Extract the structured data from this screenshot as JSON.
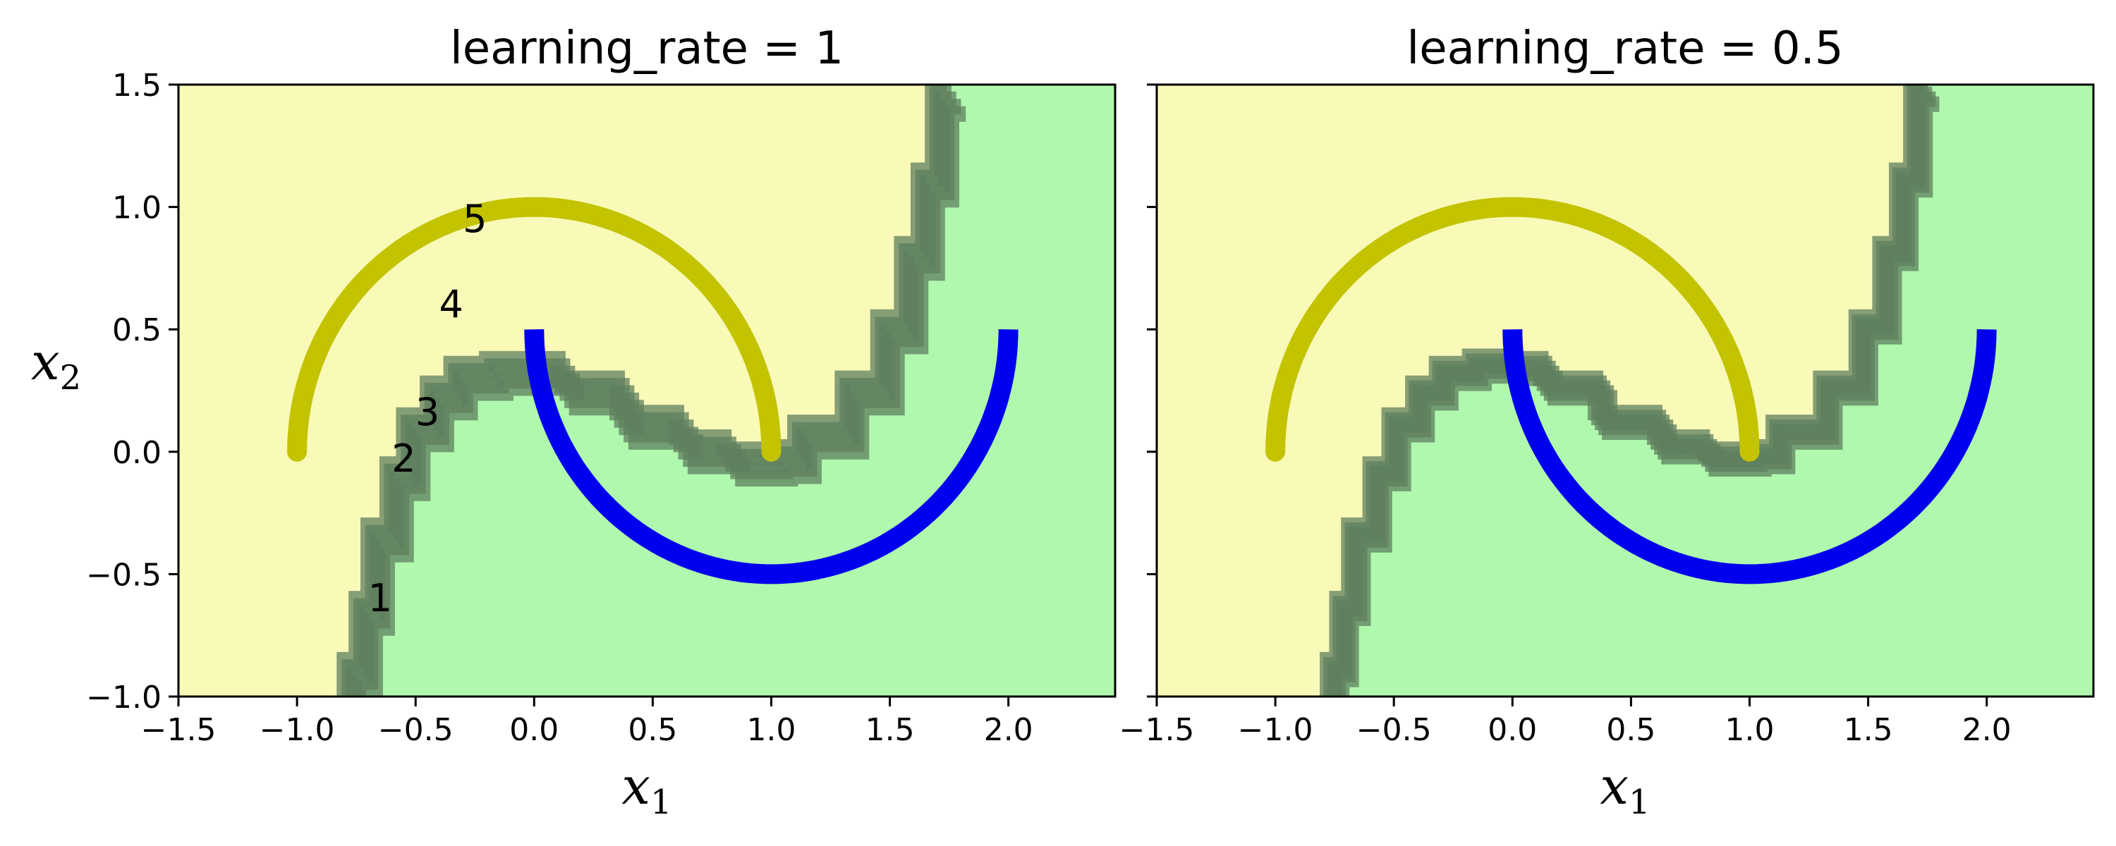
{
  "chart_data": [
    {
      "type": "area",
      "title": "learning_rate = 1",
      "xlabel": "x",
      "xlabel_sub": "1",
      "ylabel": "x",
      "ylabel_sub": "2",
      "xlim": [
        -1.5,
        2.45
      ],
      "ylim": [
        -1.0,
        1.5
      ],
      "xticks": [
        "−1.5",
        "−1.0",
        "−0.5",
        "0.0",
        "0.5",
        "1.0",
        "1.5",
        "2.0"
      ],
      "xtick_values": [
        -1.5,
        -1.0,
        -0.5,
        0.0,
        0.5,
        1.0,
        1.5,
        2.0
      ],
      "yticks": [
        "−1.0",
        "−0.5",
        "0.0",
        "0.5",
        "1.0",
        "1.5"
      ],
      "ytick_values": [
        -1.0,
        -0.5,
        0.0,
        0.5,
        1.0,
        1.5
      ],
      "grid": false,
      "region_colors": {
        "class0": "#f9f9b8",
        "class1": "#aff8ad"
      },
      "moon_colors": {
        "upper": "#c3c300",
        "lower": "#0000ee"
      },
      "boundary_color": "#5f7f5f",
      "boundary_count": 5,
      "boundary_points": [
        [
          -0.8,
          -1.0
        ],
        [
          -0.75,
          -0.85
        ],
        [
          -0.7,
          -0.6
        ],
        [
          -0.62,
          -0.3
        ],
        [
          -0.55,
          -0.05
        ],
        [
          -0.45,
          0.15
        ],
        [
          -0.35,
          0.28
        ],
        [
          -0.2,
          0.36
        ],
        [
          -0.05,
          0.38
        ],
        [
          0.1,
          0.38
        ],
        [
          0.35,
          0.3
        ],
        [
          0.6,
          0.16
        ],
        [
          0.8,
          0.06
        ],
        [
          1.0,
          0.01
        ],
        [
          1.1,
          0.02
        ],
        [
          1.3,
          0.12
        ],
        [
          1.45,
          0.3
        ],
        [
          1.55,
          0.55
        ],
        [
          1.62,
          0.85
        ],
        [
          1.68,
          1.15
        ],
        [
          1.74,
          1.5
        ]
      ],
      "boundary_offsets": [
        [
          0,
          0
        ],
        [
          0.02,
          0.03
        ],
        [
          0.04,
          0.06
        ],
        [
          0.06,
          0.09
        ],
        [
          0.08,
          0.12
        ]
      ],
      "annotations": [
        {
          "text": "1",
          "x": -0.65,
          "y": -0.6
        },
        {
          "text": "2",
          "x": -0.55,
          "y": -0.03
        },
        {
          "text": "3",
          "x": -0.45,
          "y": 0.16
        },
        {
          "text": "4",
          "x": -0.35,
          "y": 0.6
        },
        {
          "text": "5",
          "x": -0.25,
          "y": 0.95
        }
      ]
    },
    {
      "type": "area",
      "title": "learning_rate = 0.5",
      "xlabel": "x",
      "xlabel_sub": "1",
      "xlim": [
        -1.5,
        2.45
      ],
      "ylim": [
        -1.0,
        1.5
      ],
      "xticks": [
        "−1.5",
        "−1.0",
        "−0.5",
        "0.0",
        "0.5",
        "1.0",
        "1.5",
        "2.0"
      ],
      "xtick_values": [
        -1.5,
        -1.0,
        -0.5,
        0.0,
        0.5,
        1.0,
        1.5,
        2.0
      ],
      "yticks": [],
      "ytick_values": [
        -1.0,
        -0.5,
        0.0,
        0.5,
        1.0,
        1.5
      ],
      "grid": false,
      "region_colors": {
        "class0": "#f9f9b8",
        "class1": "#aff8ad"
      },
      "moon_colors": {
        "upper": "#c3c300",
        "lower": "#0000ee"
      },
      "boundary_color": "#5f7f5f",
      "boundary_count": 5,
      "boundary_points": [
        [
          -0.78,
          -1.0
        ],
        [
          -0.74,
          -0.85
        ],
        [
          -0.69,
          -0.6
        ],
        [
          -0.6,
          -0.3
        ],
        [
          -0.52,
          -0.05
        ],
        [
          -0.42,
          0.15
        ],
        [
          -0.32,
          0.28
        ],
        [
          -0.18,
          0.36
        ],
        [
          -0.03,
          0.39
        ],
        [
          0.12,
          0.38
        ],
        [
          0.35,
          0.3
        ],
        [
          0.6,
          0.16
        ],
        [
          0.8,
          0.06
        ],
        [
          1.0,
          0.01
        ],
        [
          1.1,
          0.02
        ],
        [
          1.3,
          0.12
        ],
        [
          1.45,
          0.3
        ],
        [
          1.55,
          0.55
        ],
        [
          1.62,
          0.85
        ],
        [
          1.68,
          1.15
        ],
        [
          1.74,
          1.5
        ]
      ],
      "boundary_offsets": [
        [
          0,
          0
        ],
        [
          0.015,
          0.02
        ],
        [
          0.03,
          0.04
        ],
        [
          0.045,
          0.06
        ],
        [
          0.06,
          0.08
        ]
      ],
      "annotations": []
    }
  ]
}
